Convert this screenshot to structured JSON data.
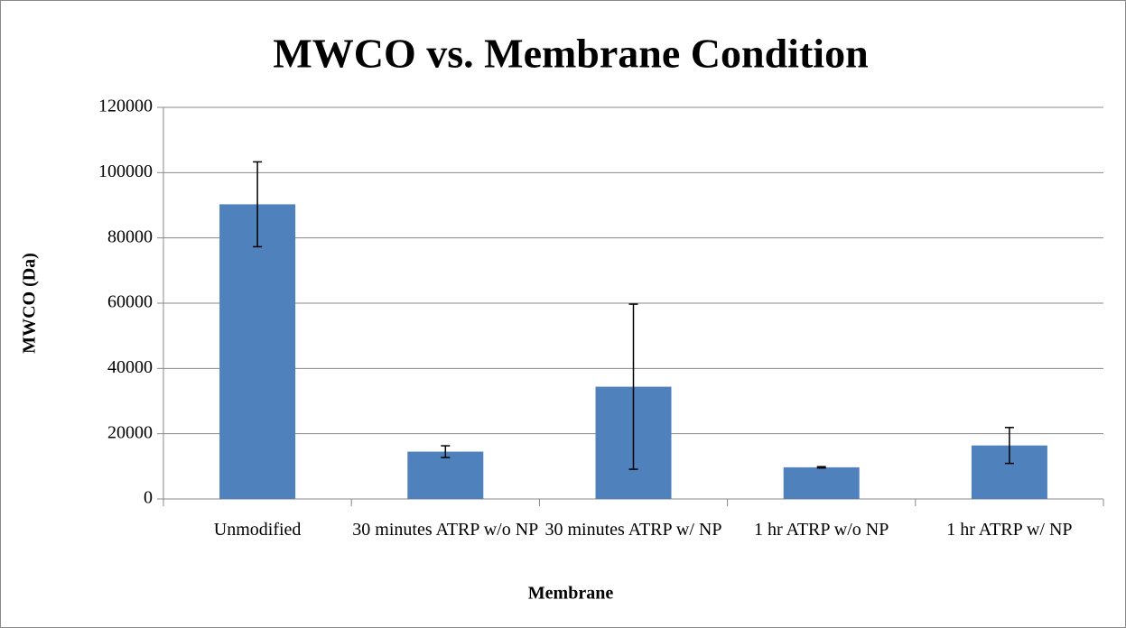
{
  "chart_data": {
    "type": "bar",
    "title": "MWCO vs. Membrane Condition",
    "x_label": "Membrane",
    "y_label": "MWCO (Da)",
    "categories": [
      "Unmodified",
      "30 minutes ATRP w/o NP",
      "30 minutes ATRP w/ NP",
      "1 hr ATRP w/o NP",
      "1 hr ATRP w/ NP"
    ],
    "values": [
      90300,
      14500,
      34400,
      9700,
      16400
    ],
    "errors": [
      13000,
      1800,
      25300,
      200,
      5500
    ],
    "color": "#4f81bd",
    "ylim": [
      0,
      120000
    ],
    "yticks": [
      0,
      20000,
      40000,
      60000,
      80000,
      100000,
      120000
    ],
    "grid": true
  }
}
